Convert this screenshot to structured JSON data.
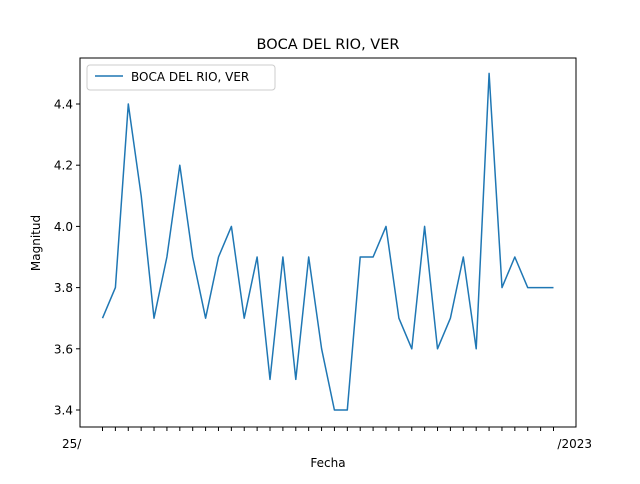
{
  "chart_data": {
    "type": "line",
    "title": "BOCA DEL RIO, VER",
    "xlabel": "Fecha",
    "ylabel": "Magnitud",
    "ylim": [
      3.35,
      4.53
    ],
    "y_ticks": [
      "3.4",
      "3.6",
      "3.8",
      "4.0",
      "4.2",
      "4.4"
    ],
    "x_tick_labels_visible": [
      "25/",
      "/2023"
    ],
    "grid": false,
    "legend": "top-left",
    "series": [
      {
        "name": "BOCA DEL RIO, VER",
        "color": "#1f77b4",
        "values": [
          3.7,
          3.8,
          4.4,
          4.1,
          3.7,
          3.9,
          4.2,
          3.9,
          3.7,
          3.9,
          4.0,
          3.7,
          3.9,
          3.5,
          3.9,
          3.5,
          3.9,
          3.6,
          3.4,
          3.4,
          3.9,
          3.9,
          4.0,
          3.7,
          3.6,
          4.0,
          3.6,
          3.7,
          3.9,
          3.6,
          4.5,
          3.8,
          3.9,
          3.8,
          3.8,
          3.8
        ]
      }
    ]
  }
}
